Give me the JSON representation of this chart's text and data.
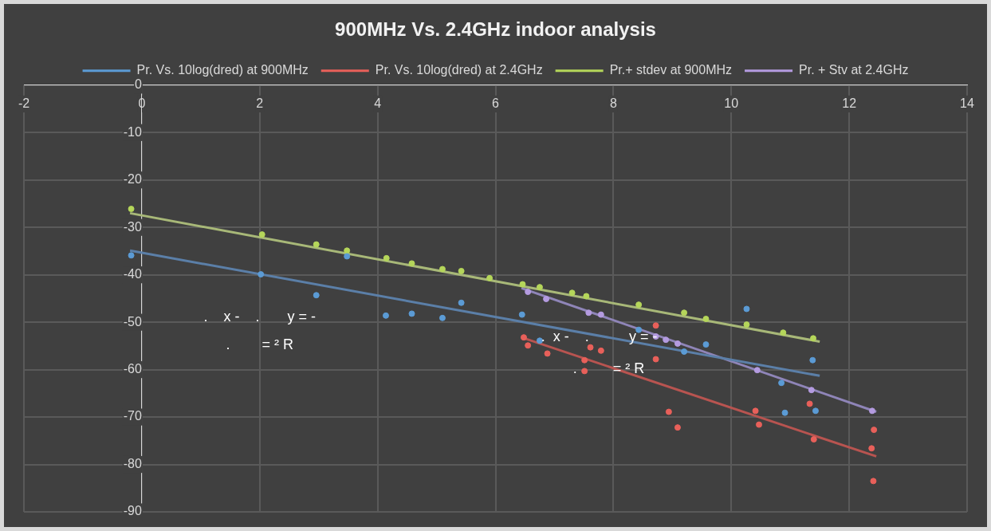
{
  "chart_data": {
    "type": "scatter",
    "title": "900MHz Vs. 2.4GHz indoor analysis",
    "xlim": [
      -2,
      14
    ],
    "xticks": [
      -2,
      0,
      2,
      4,
      6,
      8,
      10,
      12,
      14
    ],
    "ylim": [
      -90,
      0
    ],
    "yticks": [
      0,
      -10,
      -20,
      -30,
      -40,
      -50,
      -60,
      -70,
      -80,
      -90
    ],
    "grid": true,
    "legend": "top",
    "marker": "circle",
    "series": [
      {
        "name": "Pr. Vs. 10log(dred) at 900MHz",
        "color": "#5b9bd5",
        "x": [
          -0.18,
          2.02,
          2.96,
          3.48,
          4.14,
          4.58,
          5.1,
          5.42,
          6.45,
          6.75,
          8.43,
          9.2,
          9.57,
          10.26,
          10.85,
          10.91,
          11.38,
          11.43
        ],
        "values": [
          -35.9,
          -39.9,
          -44.3,
          -36.1,
          -48.6,
          -48.2,
          -49.1,
          -45.9,
          -48.4,
          -53.9,
          -51.6,
          -56.2,
          -54.7,
          -47.2,
          -62.8,
          -69.1,
          -58,
          -68.7
        ]
      },
      {
        "name": "Pr. Vs. 10log(dred) at 2.4GHz",
        "color": "#e8605a",
        "x": [
          6.48,
          6.55,
          6.88,
          7.61,
          7.51,
          7.51,
          7.79,
          8.72,
          8.72,
          8.94,
          9.09,
          10.41,
          10.47,
          11.33,
          11.4,
          12.42,
          12.38,
          12.41
        ],
        "values": [
          -53.2,
          -54.9,
          -56.6,
          -55.3,
          -58,
          -60.3,
          -56,
          -50.7,
          -57.8,
          -68.9,
          -72.2,
          -68.7,
          -71.6,
          -67.2,
          -74.7,
          -72.7,
          -76.6,
          -83.5
        ]
      },
      {
        "name": "Pr.+ stdev at 900MHz",
        "color": "#b5d65a",
        "x": [
          -0.18,
          2.04,
          2.96,
          3.48,
          4.15,
          4.58,
          5.1,
          5.42,
          5.9,
          6.46,
          6.75,
          7.3,
          7.54,
          8.43,
          9.2,
          9.57,
          10.26,
          10.88,
          11.39
        ],
        "values": [
          -26.1,
          -31.5,
          -33.6,
          -34.9,
          -36.5,
          -37.6,
          -38.8,
          -39.2,
          -40.7,
          -42,
          -42.6,
          -43.8,
          -44.5,
          -46.3,
          -48,
          -49.3,
          -50.5,
          -52.2,
          -53.4
        ]
      },
      {
        "name": "Pr. + Stv at 2.4GHz",
        "color": "#b49be0",
        "x": [
          6.55,
          6.86,
          7.58,
          7.79,
          8.72,
          8.89,
          9.09,
          10.44,
          11.36,
          12.39
        ],
        "values": [
          -43.6,
          -45.1,
          -48,
          -48.4,
          -53,
          -53.7,
          -54.5,
          -60.1,
          -64.3,
          -68.7
        ]
      },
      {
        "type": "line",
        "marker": "none",
        "color": "#5b7fa8",
        "x": [
          -0.2,
          11.5
        ],
        "values": [
          -34.9,
          -61.3
        ]
      },
      {
        "type": "line",
        "marker": "none",
        "color": "#b85450",
        "x": [
          6.44,
          12.46
        ],
        "values": [
          -53.2,
          -78.3
        ]
      },
      {
        "type": "line",
        "marker": "none",
        "color": "#a8b878",
        "x": [
          -0.2,
          11.5
        ],
        "values": [
          -27,
          -54.1
        ]
      },
      {
        "type": "line",
        "marker": "none",
        "color": "#8f85b8",
        "x": [
          6.44,
          12.46
        ],
        "values": [
          -42.8,
          -68.9
        ]
      }
    ],
    "line_style": "solid",
    "annotations": [
      ".    x -    .       y = -",
      ".        = ² R",
      ".  x -    .          y = -",
      ".         = ² R"
    ]
  }
}
